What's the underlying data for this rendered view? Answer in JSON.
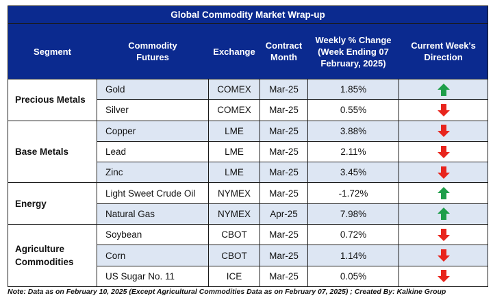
{
  "title": "Global Commodity Market Wrap-up",
  "headers": {
    "segment": "Segment",
    "futures": [
      "Commodity",
      "Futures"
    ],
    "exchange": "Exchange",
    "contract": [
      "Contract",
      "Month"
    ],
    "change": [
      "Weekly % Change",
      "(Week Ending  07",
      "February, 2025)"
    ],
    "direction": [
      "Current Week's",
      "Direction"
    ]
  },
  "segments": [
    {
      "name": [
        "Precious Metals"
      ],
      "rows": [
        {
          "future": "Gold",
          "exchange": "COMEX",
          "contract": "Mar-25",
          "change": "1.85%",
          "direction": "up"
        },
        {
          "future": "Silver",
          "exchange": "COMEX",
          "contract": "Mar-25",
          "change": "0.55%",
          "direction": "down"
        }
      ]
    },
    {
      "name": [
        "Base Metals"
      ],
      "rows": [
        {
          "future": "Copper",
          "exchange": "LME",
          "contract": "Mar-25",
          "change": "3.88%",
          "direction": "down"
        },
        {
          "future": "Lead",
          "exchange": "LME",
          "contract": "Mar-25",
          "change": "2.11%",
          "direction": "down"
        },
        {
          "future": "Zinc",
          "exchange": "LME",
          "contract": "Mar-25",
          "change": "3.45%",
          "direction": "down"
        }
      ]
    },
    {
      "name": [
        "Energy"
      ],
      "rows": [
        {
          "future": "Light Sweet Crude Oil",
          "exchange": "NYMEX",
          "contract": "Mar-25",
          "change": "-1.72%",
          "direction": "up"
        },
        {
          "future": "Natural Gas",
          "exchange": "NYMEX",
          "contract": "Apr-25",
          "change": "7.98%",
          "direction": "up"
        }
      ]
    },
    {
      "name": [
        "Agriculture",
        "Commodities"
      ],
      "rows": [
        {
          "future": "Soybean",
          "exchange": "CBOT",
          "contract": "Mar-25",
          "change": "0.72%",
          "direction": "down"
        },
        {
          "future": "Corn",
          "exchange": "CBOT",
          "contract": "Mar-25",
          "change": "1.14%",
          "direction": "down"
        },
        {
          "future": "US Sugar No. 11",
          "exchange": "ICE",
          "contract": "Mar-25",
          "change": "0.05%",
          "direction": "down"
        }
      ]
    }
  ],
  "note": "Note: Data as on February 10, 2025 (Except Agricultural Commodities Data as on February 07, 2025)  ; Created By: Kalkine Group",
  "colors": {
    "header_bg": "#0b2a8f",
    "shade": "#dde6f3",
    "up": "#1e9e4a",
    "down": "#e8251d"
  },
  "icons": {
    "up": "green-up-arrow-icon",
    "down": "red-down-arrow-icon"
  }
}
